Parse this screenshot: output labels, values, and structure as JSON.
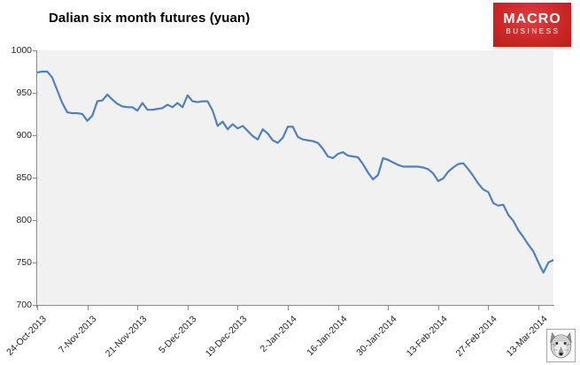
{
  "header": {
    "title": "Dalian six month futures (yuan)",
    "logo": {
      "line1": "MACRO",
      "line2": "BUSINESS",
      "bg_color": "#cd2828",
      "text_color": "#ffffff"
    }
  },
  "icons": {
    "wolf_badge": "wolf-face-icon"
  },
  "chart_data": {
    "type": "line",
    "title": "Dalian six month futures (yuan)",
    "xlabel": "",
    "ylabel": "",
    "ylim": [
      700,
      1000
    ],
    "yticks": [
      1000,
      950,
      900,
      850,
      800,
      750,
      700
    ],
    "grid": false,
    "legend": "none",
    "plot_bg": "#f1f1f1",
    "line_color": "#4F81BD",
    "axis_color": "#8e8e8e",
    "label_color": "#262626",
    "x_tick_labels": [
      "24-Oct-2013",
      "7-Nov-2013",
      "21-Nov-2013",
      "5-Dec-2013",
      "19-Dec-2013",
      "2-Jan-2014",
      "16-Jan-2014",
      "30-Jan-2014",
      "13-Feb-2014",
      "27-Feb-2014",
      "13-Mar-2014"
    ],
    "x_tick_indices": [
      0,
      10,
      20,
      30,
      40,
      50,
      60,
      70,
      80,
      90,
      100
    ],
    "values": [
      974,
      975,
      975,
      968,
      953,
      938,
      927,
      926,
      926,
      925,
      917,
      923,
      940,
      941,
      948,
      942,
      937,
      934,
      933,
      933,
      929,
      938,
      930,
      930,
      931,
      932,
      936,
      933,
      938,
      933,
      947,
      940,
      939,
      940,
      940,
      929,
      911,
      916,
      907,
      913,
      908,
      911,
      905,
      899,
      895,
      907,
      902,
      894,
      891,
      897,
      910,
      910,
      898,
      895,
      894,
      893,
      891,
      884,
      875,
      873,
      878,
      880,
      876,
      875,
      874,
      866,
      856,
      848,
      853,
      873,
      871,
      868,
      865,
      863,
      863,
      863,
      863,
      862,
      860,
      855,
      846,
      849,
      857,
      862,
      866,
      867,
      860,
      852,
      843,
      836,
      833,
      820,
      817,
      818,
      806,
      799,
      788,
      780,
      771,
      763,
      750,
      738,
      750,
      753
    ]
  }
}
